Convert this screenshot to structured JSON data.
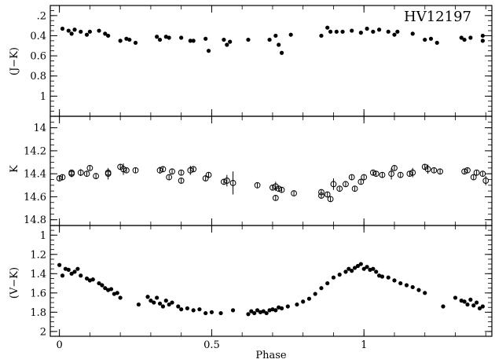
{
  "chart_data": {
    "type": "scatter",
    "title": "HV12197",
    "xlabel": "Phase",
    "xlim": [
      -0.03,
      1.42
    ],
    "x_ticks": [
      0,
      0.5,
      1
    ],
    "x_tick_labels": [
      "0",
      "0.5",
      "1"
    ],
    "colors": {
      "axes": "#000000",
      "markers": "#000000",
      "background": "#ffffff"
    },
    "panels": [
      {
        "id": "jk",
        "ylabel": "(J−K)",
        "ylim": [
          1.2,
          0.1
        ],
        "inverted_y": true,
        "y_ticks": [
          0.2,
          0.4,
          0.6,
          0.8,
          1
        ],
        "y_tick_labels": [
          ".2",
          "0.4",
          "0.6",
          "0.8",
          "1"
        ],
        "marker": "filled-circle",
        "series": [
          {
            "x": [
              0.01,
              0.03,
              0.04,
              0.05,
              0.07,
              0.09,
              0.1,
              0.13,
              0.15,
              0.16,
              0.2,
              0.22,
              0.23,
              0.25,
              0.32,
              0.33,
              0.35,
              0.36,
              0.4,
              0.43,
              0.44,
              0.48,
              0.49,
              0.54,
              0.55,
              0.56,
              0.62,
              0.69,
              0.71,
              0.72,
              0.73,
              0.76,
              0.86,
              0.88,
              0.89,
              0.91,
              0.93,
              0.96,
              0.99,
              1.01,
              1.03,
              1.05,
              1.08,
              1.1,
              1.11,
              1.16,
              1.2,
              1.22,
              1.24,
              1.32,
              1.33,
              1.35,
              1.39,
              1.39
            ],
            "y": [
              0.33,
              0.35,
              0.38,
              0.34,
              0.36,
              0.39,
              0.36,
              0.35,
              0.38,
              0.4,
              0.45,
              0.43,
              0.44,
              0.47,
              0.41,
              0.44,
              0.41,
              0.42,
              0.42,
              0.45,
              0.45,
              0.43,
              0.55,
              0.44,
              0.49,
              0.46,
              0.44,
              0.44,
              0.4,
              0.49,
              0.57,
              0.39,
              0.4,
              0.32,
              0.36,
              0.36,
              0.36,
              0.35,
              0.37,
              0.33,
              0.36,
              0.34,
              0.36,
              0.39,
              0.36,
              0.38,
              0.44,
              0.43,
              0.47,
              0.42,
              0.44,
              0.42,
              0.4,
              0.45
            ]
          }
        ]
      },
      {
        "id": "k",
        "ylabel": "K",
        "ylim": [
          14.85,
          13.9
        ],
        "inverted_y": true,
        "y_ticks": [
          14,
          14.2,
          14.4,
          14.6,
          14.8
        ],
        "y_tick_labels": [
          "14",
          "14.2",
          "14.4",
          "14.6",
          "14.8"
        ],
        "marker": "open-circle-with-errorbar",
        "series": [
          {
            "x": [
              0.0,
              0.01,
              0.04,
              0.04,
              0.07,
              0.09,
              0.1,
              0.12,
              0.16,
              0.16,
              0.2,
              0.21,
              0.22,
              0.25,
              0.33,
              0.34,
              0.36,
              0.37,
              0.4,
              0.4,
              0.43,
              0.44,
              0.48,
              0.49,
              0.54,
              0.55,
              0.57,
              0.65,
              0.7,
              0.71,
              0.71,
              0.72,
              0.73,
              0.77,
              0.86,
              0.86,
              0.88,
              0.89,
              0.9,
              0.92,
              0.94,
              0.96,
              0.97,
              0.99,
              1.0,
              1.03,
              1.04,
              1.06,
              1.09,
              1.1,
              1.12,
              1.15,
              1.16,
              1.2,
              1.21,
              1.23,
              1.25,
              1.33,
              1.34,
              1.36,
              1.37,
              1.39,
              1.4
            ],
            "y": [
              14.44,
              14.43,
              14.4,
              14.39,
              14.39,
              14.4,
              14.35,
              14.42,
              14.4,
              14.39,
              14.34,
              14.36,
              14.37,
              14.37,
              14.37,
              14.36,
              14.43,
              14.38,
              14.39,
              14.46,
              14.37,
              14.36,
              14.44,
              14.41,
              14.47,
              14.46,
              14.48,
              14.5,
              14.52,
              14.61,
              14.51,
              14.53,
              14.54,
              14.57,
              14.56,
              14.59,
              14.58,
              14.62,
              14.49,
              14.53,
              14.49,
              14.43,
              14.53,
              14.47,
              14.43,
              14.39,
              14.4,
              14.41,
              14.4,
              14.35,
              14.41,
              14.4,
              14.39,
              14.34,
              14.36,
              14.37,
              14.38,
              14.38,
              14.37,
              14.43,
              14.39,
              14.4,
              14.46
            ],
            "yerr": [
              0.02,
              0.02,
              0.03,
              0.02,
              0.03,
              0.02,
              0.02,
              0.02,
              0.05,
              0.02,
              0.02,
              0.05,
              0.02,
              0.02,
              0.03,
              0.02,
              0.02,
              0.02,
              0.02,
              0.02,
              0.04,
              0.02,
              0.02,
              0.02,
              0.02,
              0.05,
              0.1,
              0.02,
              0.02,
              0.02,
              0.04,
              0.02,
              0.02,
              0.02,
              0.02,
              0.02,
              0.02,
              0.02,
              0.05,
              0.02,
              0.02,
              0.02,
              0.02,
              0.02,
              0.02,
              0.02,
              0.02,
              0.02,
              0.05,
              0.02,
              0.02,
              0.02,
              0.04,
              0.02,
              0.04,
              0.02,
              0.02,
              0.02,
              0.02,
              0.02,
              0.02,
              0.02,
              0.04
            ]
          }
        ]
      },
      {
        "id": "vk",
        "ylabel": "(V−K)",
        "ylim": [
          2.05,
          0.9
        ],
        "inverted_y": true,
        "y_ticks": [
          1,
          1.2,
          1.4,
          1.6,
          1.8,
          2
        ],
        "y_tick_labels": [
          "1",
          "1.2",
          "1.4",
          "1.6",
          "1.8",
          "2"
        ],
        "marker": "filled-circle",
        "series": [
          {
            "x": [
              0.0,
              0.01,
              0.02,
              0.03,
              0.04,
              0.05,
              0.06,
              0.07,
              0.09,
              0.1,
              0.11,
              0.13,
              0.14,
              0.15,
              0.16,
              0.17,
              0.18,
              0.19,
              0.2,
              0.26,
              0.29,
              0.3,
              0.31,
              0.32,
              0.33,
              0.34,
              0.35,
              0.36,
              0.37,
              0.39,
              0.4,
              0.42,
              0.44,
              0.46,
              0.48,
              0.5,
              0.53,
              0.57,
              0.62,
              0.63,
              0.64,
              0.65,
              0.66,
              0.67,
              0.68,
              0.69,
              0.7,
              0.71,
              0.72,
              0.73,
              0.75,
              0.78,
              0.8,
              0.82,
              0.84,
              0.86,
              0.88,
              0.9,
              0.92,
              0.94,
              0.95,
              0.96,
              0.97,
              0.98,
              0.99,
              1.0,
              1.01,
              1.02,
              1.03,
              1.04,
              1.05,
              1.06,
              1.08,
              1.1,
              1.12,
              1.14,
              1.16,
              1.18,
              1.2,
              1.26,
              1.3,
              1.32,
              1.33,
              1.34,
              1.35,
              1.36,
              1.37,
              1.38,
              1.39
            ],
            "y": [
              1.31,
              1.42,
              1.35,
              1.36,
              1.4,
              1.38,
              1.35,
              1.42,
              1.45,
              1.47,
              1.46,
              1.5,
              1.52,
              1.55,
              1.57,
              1.56,
              1.61,
              1.6,
              1.65,
              1.72,
              1.64,
              1.68,
              1.7,
              1.65,
              1.71,
              1.74,
              1.68,
              1.72,
              1.7,
              1.74,
              1.77,
              1.76,
              1.78,
              1.77,
              1.81,
              1.8,
              1.81,
              1.78,
              1.82,
              1.79,
              1.81,
              1.78,
              1.8,
              1.79,
              1.81,
              1.78,
              1.77,
              1.78,
              1.75,
              1.76,
              1.74,
              1.72,
              1.69,
              1.66,
              1.61,
              1.55,
              1.5,
              1.44,
              1.41,
              1.38,
              1.35,
              1.37,
              1.34,
              1.32,
              1.3,
              1.35,
              1.33,
              1.36,
              1.35,
              1.38,
              1.42,
              1.43,
              1.44,
              1.47,
              1.5,
              1.52,
              1.54,
              1.57,
              1.6,
              1.74,
              1.65,
              1.68,
              1.69,
              1.72,
              1.67,
              1.73,
              1.7,
              1.76,
              1.74
            ]
          }
        ]
      }
    ]
  }
}
